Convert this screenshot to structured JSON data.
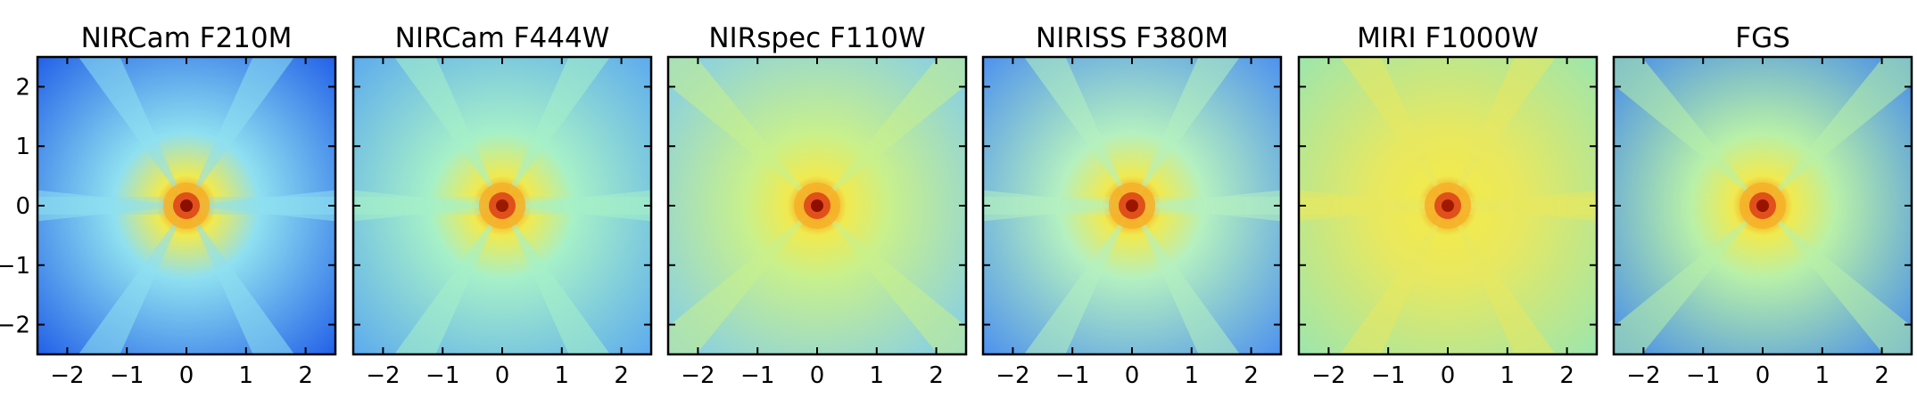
{
  "chart_data": [
    {
      "type": "heatmap",
      "title": "NIRCam F210M",
      "xlim": [
        -2.5,
        2.5
      ],
      "ylim": [
        -2.5,
        2.5
      ],
      "xticks": [
        -2,
        -1,
        0,
        1,
        2
      ],
      "yticks": [
        -2,
        -1,
        0,
        1,
        2
      ],
      "xtick_labels": [
        "−2",
        "−1",
        "0",
        "1",
        "2"
      ],
      "ytick_labels": [
        "−2",
        "−1",
        "0",
        "1",
        "2"
      ],
      "spikes": 6,
      "background": "#1f5ce8",
      "halo": "#8fe0f0",
      "peak": "#8a0f00"
    },
    {
      "type": "heatmap",
      "title": "NIRCam F444W",
      "xlim": [
        -2.5,
        2.5
      ],
      "ylim": [
        -2.5,
        2.5
      ],
      "xticks": [
        -2,
        -1,
        0,
        1,
        2
      ],
      "xtick_labels": [
        "−2",
        "−1",
        "0",
        "1",
        "2"
      ],
      "spikes": 6,
      "background": "#5aa8f0",
      "halo": "#a6f0c8",
      "peak": "#9a1a00"
    },
    {
      "type": "heatmap",
      "title": "NIRspec F110W",
      "xlim": [
        -2.5,
        2.5
      ],
      "ylim": [
        -2.5,
        2.5
      ],
      "xticks": [
        -2,
        -1,
        0,
        1,
        2
      ],
      "xtick_labels": [
        "−2",
        "−1",
        "0",
        "1",
        "2"
      ],
      "spikes": 4,
      "background": "#7ecaf2",
      "halo": "#c8f08c",
      "peak": "#900e00"
    },
    {
      "type": "heatmap",
      "title": "NIRISS F380M",
      "xlim": [
        -2.5,
        2.5
      ],
      "ylim": [
        -2.5,
        2.5
      ],
      "xticks": [
        -2,
        -1,
        0,
        1,
        2
      ],
      "xtick_labels": [
        "−2",
        "−1",
        "0",
        "1",
        "2"
      ],
      "spikes": 6,
      "background": "#4a8ef0",
      "halo": "#b4f0c0",
      "peak": "#9a1400"
    },
    {
      "type": "heatmap",
      "title": "MIRI F1000W",
      "xlim": [
        -2.5,
        2.5
      ],
      "ylim": [
        -2.5,
        2.5
      ],
      "xticks": [
        -2,
        -1,
        0,
        1,
        2
      ],
      "xtick_labels": [
        "−2",
        "−1",
        "0",
        "1",
        "2"
      ],
      "spikes": 6,
      "background": "#9ae6b0",
      "halo": "#e8e860",
      "peak": "#a01800"
    },
    {
      "type": "heatmap",
      "title": "FGS",
      "xlim": [
        -2.5,
        2.5
      ],
      "ylim": [
        -2.5,
        2.5
      ],
      "xticks": [
        -2,
        -1,
        0,
        1,
        2
      ],
      "xtick_labels": [
        "−2",
        "−1",
        "0",
        "1",
        "2"
      ],
      "spikes": 4,
      "background": "#3f86ee",
      "halo": "#b8f0a8",
      "peak": "#9a1200"
    }
  ]
}
